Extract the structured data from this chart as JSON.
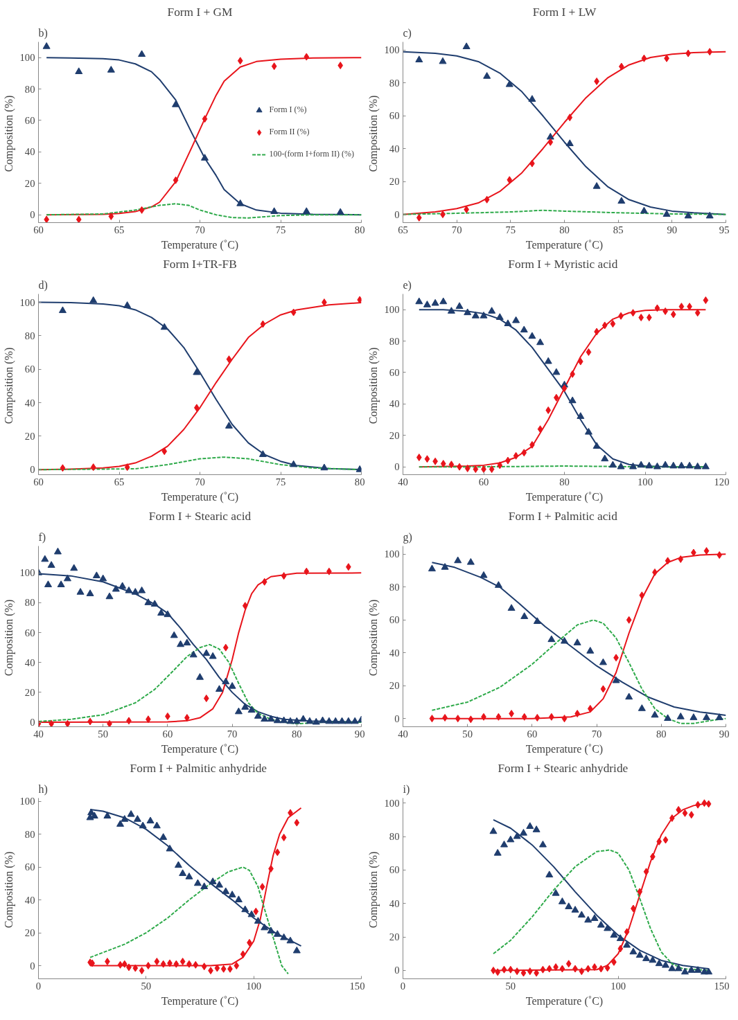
{
  "chart_data": [
    {
      "type": "scatter",
      "title": "Form I + GM",
      "annotations": [
        "b)"
      ],
      "xlabel": "Temperature (˚C)",
      "ylabel": "Composition  (%)",
      "xlim": [
        60,
        80
      ],
      "xticks": [
        60,
        65,
        70,
        75,
        80
      ],
      "ylim": [
        -5,
        110
      ],
      "yticks": [
        0,
        20,
        40,
        60,
        80,
        100
      ],
      "grid": false,
      "legend": "right",
      "series": [
        {
          "name": "Form I (%)",
          "type": "scatter",
          "marker": "triangle",
          "color": "#1f3d6e",
          "x": [
            60.5,
            62.5,
            64.5,
            66.4,
            68.5,
            70.3,
            72.5,
            74.6,
            76.6,
            78.7
          ],
          "values": [
            107,
            91,
            92,
            102,
            70,
            36,
            7,
            2,
            2,
            1.5
          ]
        },
        {
          "name": "Form II (%)",
          "type": "scatter",
          "marker": "diamond",
          "color": "#e8141b",
          "x": [
            60.5,
            62.5,
            64.5,
            66.4,
            68.5,
            70.3,
            72.5,
            74.6,
            76.6,
            78.7
          ],
          "values": [
            -3,
            -3,
            -1,
            3,
            22,
            61,
            98,
            94.5,
            100.5,
            95
          ]
        },
        {
          "type": "line",
          "line_style": "solid",
          "color": "#1f3d6e",
          "x": [
            60.5,
            62,
            64,
            65,
            66,
            67,
            67.5,
            68.5,
            69.5,
            70.3,
            71,
            71.5,
            72.5,
            73.5,
            75,
            77,
            80
          ],
          "values": [
            100,
            99.8,
            99.3,
            98.5,
            96,
            91,
            86,
            73,
            52,
            36,
            25,
            16,
            7,
            3,
            1,
            0.3,
            0
          ]
        },
        {
          "type": "line",
          "line_style": "solid",
          "color": "#e8141b",
          "x": [
            60.5,
            64,
            65,
            66,
            67,
            67.5,
            68.5,
            69.5,
            70.3,
            71,
            71.5,
            72.5,
            73.5,
            75,
            77,
            80
          ],
          "values": [
            0,
            0.3,
            0.8,
            2,
            5,
            8,
            21,
            43,
            61,
            76,
            85,
            94,
            97.5,
            99,
            99.8,
            100
          ]
        },
        {
          "name": "100-(form I+form II) (%)",
          "type": "line",
          "line_style": "dashed",
          "color": "#2eaa4a",
          "x": [
            60.5,
            64,
            66,
            67.5,
            68.5,
            69.3,
            70,
            71,
            72,
            73,
            75,
            77,
            80
          ],
          "values": [
            0,
            0.5,
            3,
            6,
            7,
            6,
            3,
            0,
            -1.8,
            -2,
            -0.5,
            0,
            0
          ]
        }
      ]
    },
    {
      "type": "scatter",
      "title": "Form I + LW",
      "annotations": [
        "c)"
      ],
      "xlabel": "Temperature (˚C)",
      "ylabel": "Composition  (%)",
      "xlim": [
        65,
        95
      ],
      "xticks": [
        65,
        70,
        75,
        80,
        85,
        90,
        95
      ],
      "ylim": [
        -5,
        105
      ],
      "yticks": [
        0,
        20,
        40,
        60,
        80,
        100
      ],
      "grid": false,
      "series": [
        {
          "type": "scatter",
          "marker": "triangle",
          "color": "#1f3d6e",
          "x": [
            66.5,
            68.7,
            70.9,
            72.8,
            74.9,
            77,
            78.7,
            80.5,
            83,
            85.3,
            87.4,
            89.5,
            91.5,
            93.5
          ],
          "values": [
            94,
            93,
            102,
            84,
            79,
            70,
            47,
            43,
            17,
            8,
            2,
            0,
            -1,
            -1
          ]
        },
        {
          "type": "scatter",
          "marker": "diamond",
          "color": "#e8141b",
          "x": [
            66.5,
            68.7,
            70.9,
            72.8,
            74.9,
            77,
            78.7,
            80.5,
            83,
            85.3,
            87.4,
            89.5,
            91.5,
            93.5
          ],
          "values": [
            -2,
            0,
            3,
            9,
            21,
            31,
            44,
            59,
            81,
            90,
            95,
            95,
            98,
            99
          ]
        },
        {
          "type": "line",
          "line_style": "solid",
          "color": "#1f3d6e",
          "x": [
            65,
            68,
            70,
            72,
            74,
            76,
            78,
            80,
            82,
            84,
            86,
            88,
            90,
            92,
            95
          ],
          "values": [
            99,
            98,
            96.5,
            93,
            86,
            75,
            60,
            44,
            29,
            17,
            9,
            4.5,
            2,
            1,
            0
          ]
        },
        {
          "type": "line",
          "line_style": "solid",
          "color": "#e8141b",
          "x": [
            65,
            68,
            70,
            72,
            74,
            76,
            78,
            80,
            82,
            84,
            86,
            88,
            90,
            92,
            95
          ],
          "values": [
            0,
            1.5,
            3.5,
            7,
            14,
            25,
            40,
            56,
            71,
            83,
            91,
            95.5,
            97.5,
            98.5,
            99
          ]
        },
        {
          "type": "line",
          "line_style": "dashed",
          "color": "#2eaa4a",
          "x": [
            65,
            70,
            75,
            78,
            80,
            85,
            90,
            95
          ],
          "values": [
            0,
            0.7,
            1.5,
            2.5,
            2,
            1,
            0.3,
            0
          ]
        }
      ]
    },
    {
      "type": "scatter",
      "title": "Form I+TR-FB",
      "annotations": [
        "d)"
      ],
      "xlabel": "Temperature (˚C)",
      "ylabel": "Composition  (%)",
      "xlim": [
        60,
        80
      ],
      "xticks": [
        60,
        65,
        70,
        75,
        80
      ],
      "ylim": [
        -3,
        105
      ],
      "yticks": [
        0,
        20,
        40,
        60,
        80,
        100
      ],
      "grid": false,
      "series": [
        {
          "type": "scatter",
          "marker": "triangle",
          "color": "#1f3d6e",
          "x": [
            61.5,
            63.4,
            65.5,
            67.8,
            69.8,
            71.8,
            73.9,
            75.8,
            77.7,
            79.9
          ],
          "values": [
            95,
            101,
            98,
            85,
            58,
            26,
            9,
            3,
            1,
            0
          ]
        },
        {
          "type": "scatter",
          "marker": "diamond",
          "color": "#e8141b",
          "x": [
            61.5,
            63.4,
            65.5,
            67.8,
            69.8,
            71.8,
            73.9,
            75.8,
            77.7,
            79.9
          ],
          "values": [
            1,
            1.5,
            1.5,
            11,
            37,
            66,
            87,
            94,
            100,
            101.5
          ]
        },
        {
          "type": "line",
          "line_style": "solid",
          "color": "#1f3d6e",
          "x": [
            60,
            62,
            64,
            65,
            66,
            67,
            68,
            69,
            70,
            71,
            72,
            73,
            74,
            75,
            76,
            78,
            80
          ],
          "values": [
            100,
            99.8,
            99,
            98,
            95.5,
            91,
            84,
            73,
            58,
            42,
            27,
            16,
            9,
            5,
            2.5,
            0.6,
            0.1
          ]
        },
        {
          "type": "line",
          "line_style": "solid",
          "color": "#e8141b",
          "x": [
            60,
            62,
            64,
            65,
            66,
            67,
            68,
            69,
            70,
            71,
            72,
            73,
            74,
            75,
            76,
            78,
            80
          ],
          "values": [
            0,
            0.3,
            1,
            2,
            4,
            8,
            14,
            24,
            37,
            52,
            66,
            79,
            87,
            92.5,
            95.5,
            98.5,
            99.8
          ]
        },
        {
          "type": "line",
          "line_style": "dashed",
          "color": "#2eaa4a",
          "x": [
            60,
            66,
            68,
            70,
            71.5,
            73,
            75,
            77,
            80
          ],
          "values": [
            0,
            0.5,
            3,
            6.5,
            7.5,
            6.5,
            3,
            1,
            0
          ]
        }
      ]
    },
    {
      "type": "scatter",
      "title": "Form I + Myristic  acid",
      "annotations": [
        "e)"
      ],
      "xlabel": "Temperature (˚C)",
      "ylabel": "Composition  (%)",
      "xlim": [
        40,
        120
      ],
      "xticks": [
        40,
        60,
        80,
        100,
        120
      ],
      "ylim": [
        -5,
        110
      ],
      "yticks": [
        0,
        20,
        40,
        60,
        80,
        100
      ],
      "grid": false,
      "series": [
        {
          "type": "scatter",
          "marker": "triangle",
          "color": "#1f3d6e",
          "x": [
            44,
            46,
            48,
            50,
            52,
            54,
            56,
            58,
            60,
            62,
            64,
            66,
            68,
            70,
            72,
            74,
            76,
            78,
            80,
            82,
            84,
            86,
            88,
            90,
            92,
            94,
            97,
            99,
            101,
            103,
            105,
            107,
            109,
            111,
            113,
            115
          ],
          "values": [
            105,
            103,
            104,
            105,
            99,
            102,
            98,
            96,
            96,
            99,
            95,
            91,
            93,
            87,
            83,
            79,
            67,
            60,
            52,
            42,
            32,
            22,
            13,
            5,
            1,
            0,
            0,
            1,
            0.5,
            0,
            1,
            0.5,
            0.5,
            0.5,
            0,
            0
          ]
        },
        {
          "type": "scatter",
          "marker": "diamond",
          "color": "#e8141b",
          "x": [
            44,
            46,
            48,
            50,
            52,
            54,
            56,
            58,
            60,
            62,
            64,
            66,
            68,
            70,
            72,
            74,
            76,
            78,
            80,
            82,
            84,
            86,
            88,
            90,
            92,
            94,
            97,
            99,
            101,
            103,
            105,
            107,
            109,
            111,
            113,
            115
          ],
          "values": [
            6,
            5,
            3.5,
            2,
            1.5,
            0,
            -1,
            -1.5,
            -1.5,
            -1.5,
            1,
            4,
            7,
            9,
            14,
            24,
            36,
            44,
            50,
            59,
            67,
            73,
            86,
            90,
            91,
            96,
            98,
            95,
            95,
            101,
            99,
            97,
            102,
            102,
            98,
            106
          ]
        },
        {
          "type": "line",
          "line_style": "solid",
          "color": "#1f3d6e",
          "x": [
            44,
            50,
            56,
            60,
            64,
            68,
            72,
            76,
            80,
            84,
            88,
            92,
            96,
            100,
            105,
            115
          ],
          "values": [
            100,
            100,
            99,
            97.5,
            94,
            87,
            76,
            62,
            48,
            30,
            14,
            5,
            1.5,
            0.5,
            0.1,
            0
          ]
        },
        {
          "type": "line",
          "line_style": "solid",
          "color": "#e8141b",
          "x": [
            44,
            56,
            60,
            64,
            68,
            72,
            76,
            80,
            84,
            88,
            92,
            96,
            100,
            105,
            115
          ],
          "values": [
            0,
            0.5,
            1,
            2.5,
            6,
            13,
            30,
            50,
            70,
            85,
            94,
            98,
            99.5,
            100,
            100
          ]
        },
        {
          "type": "line",
          "line_style": "dashed",
          "color": "#2eaa4a",
          "x": [
            44,
            60,
            80,
            100,
            115
          ],
          "values": [
            0,
            0,
            0.5,
            0,
            0
          ]
        }
      ]
    },
    {
      "type": "scatter",
      "title": "Form I + Stearic acid",
      "annotations": [
        "f)"
      ],
      "xlabel": "Temperature (˚C)",
      "ylabel": "Composition  (%)",
      "xlim": [
        40,
        90
      ],
      "xticks": [
        40,
        50,
        60,
        70,
        80,
        90
      ],
      "ylim": [
        -3,
        118
      ],
      "yticks": [
        0,
        20,
        40,
        60,
        80,
        100
      ],
      "grid": false,
      "series": [
        {
          "type": "scatter",
          "marker": "triangle",
          "color": "#1f3d6e",
          "x": [
            40,
            41,
            41.5,
            42,
            43,
            43.5,
            44.5,
            45.5,
            46.5,
            48,
            49,
            50,
            51,
            52,
            53,
            54,
            55,
            56,
            57,
            58,
            59,
            60,
            61,
            62,
            63,
            64,
            65,
            66,
            67,
            68,
            69,
            70,
            71,
            72,
            73,
            74,
            75,
            76,
            77,
            78,
            79,
            80,
            81,
            82,
            83,
            84,
            85,
            86,
            87,
            88,
            89,
            90
          ],
          "values": [
            100,
            109,
            92,
            105,
            114,
            92,
            96,
            103,
            87,
            86,
            98,
            96,
            84,
            89,
            91,
            88,
            87,
            88,
            80,
            79,
            73,
            72,
            58,
            52,
            53,
            45,
            30,
            46,
            44,
            22,
            27,
            24,
            7,
            10,
            8,
            4,
            2,
            2,
            1,
            1,
            0.5,
            0.5,
            2,
            0.5,
            0,
            1,
            0.5,
            0.5,
            0.5,
            0.5,
            0.5,
            1.5
          ]
        },
        {
          "type": "scatter",
          "marker": "diamond",
          "color": "#e8141b",
          "x": [
            40,
            42,
            44.5,
            48,
            51,
            54,
            57,
            60,
            63,
            66,
            69,
            72,
            75,
            78,
            81.5,
            85,
            88
          ],
          "values": [
            -1,
            -1,
            -1,
            0.5,
            -1,
            1,
            2,
            4,
            3,
            16,
            50,
            78,
            94,
            98,
            101,
            101,
            104
          ]
        },
        {
          "type": "line",
          "line_style": "solid",
          "color": "#1f3d6e",
          "x": [
            40,
            45,
            50,
            55,
            58,
            60,
            62,
            64,
            66,
            68,
            70,
            72,
            74,
            76,
            78,
            82,
            90
          ],
          "values": [
            99.5,
            98,
            94,
            86,
            79,
            73,
            63,
            52,
            42,
            30,
            20,
            12,
            7,
            4,
            2,
            0.8,
            0.1
          ]
        },
        {
          "type": "line",
          "line_style": "solid",
          "color": "#e8141b",
          "x": [
            40,
            60,
            63,
            65,
            67,
            68.5,
            70,
            71,
            72,
            73,
            74,
            76,
            80,
            90
          ],
          "values": [
            0,
            0.2,
            1,
            3,
            9,
            20,
            42,
            60,
            75,
            86,
            92,
            97.5,
            99.8,
            100
          ]
        },
        {
          "type": "line",
          "line_style": "dashed",
          "color": "#2eaa4a",
          "x": [
            40,
            45,
            50,
            55,
            58,
            61,
            63,
            65,
            66.5,
            68,
            69.5,
            71,
            72.5,
            74,
            76,
            78,
            80,
            82,
            84,
            90
          ],
          "values": [
            0.5,
            2,
            5,
            13,
            22,
            35,
            44,
            50,
            52,
            49,
            40,
            26,
            13,
            6,
            2,
            0,
            -1,
            -0.5,
            0,
            0
          ]
        }
      ]
    },
    {
      "type": "scatter",
      "title": "Form I + Palmitic  acid",
      "annotations": [
        "g)"
      ],
      "xlabel": "Temperature (˚C)",
      "ylabel": "Composition  (%)",
      "xlim": [
        40,
        90
      ],
      "xticks": [
        40,
        50,
        60,
        70,
        80,
        90
      ],
      "ylim": [
        -5,
        105
      ],
      "yticks": [
        0,
        20,
        40,
        60,
        80,
        100
      ],
      "grid": false,
      "series": [
        {
          "type": "scatter",
          "marker": "triangle",
          "color": "#1f3d6e",
          "x": [
            44.5,
            46.5,
            48.5,
            50.5,
            52.5,
            54.8,
            56.8,
            58.8,
            60.8,
            63,
            65,
            67,
            69,
            71,
            73,
            75,
            77,
            79,
            81,
            83,
            85,
            87,
            89
          ],
          "values": [
            91,
            92,
            96,
            95,
            87,
            81,
            67,
            62,
            59,
            48,
            47,
            46,
            41,
            34,
            23,
            13,
            6,
            2,
            0,
            1,
            0.5,
            0.5,
            0.5
          ]
        },
        {
          "type": "scatter",
          "marker": "diamond",
          "color": "#e8141b",
          "x": [
            44.5,
            46.5,
            48.5,
            50.5,
            52.5,
            54.8,
            56.8,
            58.8,
            60.8,
            63,
            65,
            67,
            69,
            71,
            73,
            75,
            77,
            79,
            81,
            83,
            85,
            87,
            89
          ],
          "values": [
            0,
            0.5,
            0,
            -0.5,
            1,
            1,
            3,
            1,
            0.5,
            1,
            0,
            3,
            6,
            18,
            37,
            60,
            75,
            89,
            96,
            97,
            101,
            102,
            99.5
          ]
        },
        {
          "type": "line",
          "line_style": "solid",
          "color": "#1f3d6e",
          "x": [
            44.5,
            48,
            52,
            55,
            58,
            62,
            66,
            70,
            74,
            78,
            82,
            86,
            90
          ],
          "values": [
            95,
            92,
            86,
            80,
            70,
            56,
            44,
            32,
            22,
            13,
            7,
            4,
            2
          ]
        },
        {
          "type": "line",
          "line_style": "solid",
          "color": "#e8141b",
          "x": [
            44.5,
            60,
            66,
            69,
            71,
            73,
            75,
            77,
            79,
            81,
            83,
            86,
            90
          ],
          "values": [
            0,
            0,
            1,
            4,
            12,
            28,
            52,
            73,
            88,
            95,
            98,
            99.5,
            100
          ]
        },
        {
          "type": "line",
          "line_style": "dashed",
          "color": "#2eaa4a",
          "x": [
            44.5,
            50,
            55,
            60,
            64,
            67,
            69.5,
            71,
            73,
            75,
            77,
            79,
            81,
            83,
            85,
            88,
            90
          ],
          "values": [
            5,
            10,
            19,
            33,
            47,
            57,
            60,
            58,
            49,
            34,
            18,
            6,
            0,
            -3,
            -3,
            -1,
            0
          ]
        }
      ]
    },
    {
      "type": "scatter",
      "title": "Form I + Palmitic  anhydride",
      "annotations": [
        "h)"
      ],
      "xlabel": "Temperature (˚C)",
      "ylabel": "Composition  (%)",
      "xlim": [
        0,
        150
      ],
      "xticks": [
        0,
        50,
        100,
        150
      ],
      "ylim": [
        -8,
        102
      ],
      "yticks": [
        0,
        20,
        40,
        60,
        80,
        100
      ],
      "grid": false,
      "series": [
        {
          "type": "scatter",
          "marker": "triangle",
          "color": "#1f3d6e",
          "x": [
            24,
            24.5,
            25,
            26,
            32,
            38,
            40,
            43,
            46,
            48.5,
            52,
            55,
            58,
            61,
            65,
            67,
            70,
            74,
            77,
            81,
            84,
            87,
            90,
            93,
            96,
            99,
            102,
            105,
            108,
            111,
            114,
            117,
            120
          ],
          "values": [
            90,
            93,
            null,
            91,
            91,
            86,
            89,
            92,
            89,
            85,
            88,
            85,
            78,
            71,
            61,
            56,
            54,
            50,
            48,
            51,
            49,
            45,
            43,
            40,
            34,
            31,
            27,
            23,
            21,
            19,
            17,
            15,
            9
          ]
        },
        {
          "type": "scatter",
          "marker": "diamond",
          "color": "#e8141b",
          "x": [
            24,
            25,
            32,
            38,
            40,
            42,
            45,
            48,
            51,
            55,
            58,
            61,
            64,
            67,
            70,
            73,
            77,
            80,
            83,
            86,
            89,
            92,
            95,
            98,
            101,
            104,
            108,
            111,
            114,
            117,
            120
          ],
          "values": [
            2,
            1.5,
            2.5,
            0.5,
            1,
            -1,
            -1.5,
            -3,
            0,
            2.5,
            1,
            1.5,
            1,
            2.5,
            1,
            0.5,
            -0.5,
            -3,
            -1.5,
            -2,
            -2,
            0,
            7,
            14,
            33,
            48,
            59,
            69,
            78,
            93,
            87
          ]
        },
        {
          "type": "line",
          "line_style": "solid",
          "color": "#1f3d6e",
          "x": [
            24,
            30,
            40,
            50,
            60,
            70,
            80,
            90,
            100,
            110,
            122
          ],
          "values": [
            95,
            94,
            90,
            83,
            73,
            61,
            50,
            40,
            29,
            20,
            12
          ]
        },
        {
          "type": "line",
          "line_style": "solid",
          "color": "#e8141b",
          "x": [
            24,
            80,
            90,
            95,
            100,
            103,
            106,
            109,
            112,
            116,
            122
          ],
          "values": [
            0,
            0,
            1,
            5,
            15,
            28,
            48,
            67,
            80,
            90,
            96
          ]
        },
        {
          "type": "line",
          "line_style": "dashed",
          "color": "#2eaa4a",
          "x": [
            24,
            30,
            40,
            50,
            60,
            70,
            80,
            88,
            95,
            98,
            102,
            106,
            110,
            113,
            116
          ],
          "values": [
            5,
            8,
            13,
            20,
            29,
            40,
            50,
            57,
            60,
            58,
            48,
            30,
            13,
            0,
            -5
          ]
        }
      ]
    },
    {
      "type": "scatter",
      "title": "Form I + Stearic  anhydride",
      "annotations": [
        "i)"
      ],
      "xlabel": "Temperature (˚C)",
      "ylabel": "Composition  (%)",
      "xlim": [
        0,
        150
      ],
      "xticks": [
        0,
        50,
        100,
        150
      ],
      "ylim": [
        -5,
        103
      ],
      "yticks": [
        0,
        20,
        40,
        60,
        80,
        100
      ],
      "grid": false,
      "series": [
        {
          "type": "scatter",
          "marker": "triangle",
          "color": "#1f3d6e",
          "x": [
            42,
            44,
            47,
            50,
            53,
            56,
            59,
            62,
            65,
            68,
            71,
            74,
            77,
            80,
            83,
            86,
            89,
            92,
            95,
            98,
            101,
            104,
            107,
            110,
            113,
            116,
            119,
            122,
            125,
            128,
            131,
            134,
            137,
            140,
            142
          ],
          "values": [
            83,
            70,
            75,
            78,
            80,
            82,
            86,
            84,
            75,
            57,
            46,
            41,
            38,
            36,
            33,
            30,
            31,
            27,
            25,
            21,
            19,
            15,
            11,
            9,
            7,
            6,
            4,
            3,
            1,
            1,
            -1,
            0,
            0,
            -1,
            -1
          ]
        },
        {
          "type": "scatter",
          "marker": "diamond",
          "color": "#e8141b",
          "x": [
            42,
            44,
            47,
            50,
            53,
            56,
            59,
            62,
            65,
            68,
            71,
            74,
            77,
            80,
            83,
            86,
            89,
            92,
            95,
            98,
            101,
            104,
            107,
            110,
            113,
            116,
            119,
            122,
            125,
            128,
            131,
            134,
            137,
            140,
            142
          ],
          "values": [
            0,
            -1,
            0.5,
            0.5,
            -0.5,
            -1.5,
            -0.5,
            -1.5,
            0.5,
            1,
            2,
            1,
            4,
            1,
            -0.5,
            1,
            2,
            1,
            1.5,
            5,
            13,
            23,
            37,
            47,
            59,
            68,
            77,
            78,
            91,
            96,
            94,
            93,
            99,
            100,
            99.5
          ]
        },
        {
          "type": "line",
          "line_style": "solid",
          "color": "#1f3d6e",
          "x": [
            42,
            50,
            60,
            70,
            80,
            90,
            100,
            110,
            120,
            130,
            142
          ],
          "values": [
            90,
            85,
            75,
            62,
            47,
            33,
            21,
            12,
            6,
            3,
            1
          ]
        },
        {
          "type": "line",
          "line_style": "solid",
          "color": "#e8141b",
          "x": [
            42,
            90,
            95,
            100,
            105,
            110,
            115,
            120,
            125,
            130,
            135,
            142
          ],
          "values": [
            0,
            0.5,
            3,
            10,
            25,
            45,
            65,
            81,
            91,
            96,
            98.5,
            100
          ]
        },
        {
          "type": "line",
          "line_style": "dashed",
          "color": "#2eaa4a",
          "x": [
            42,
            50,
            60,
            70,
            80,
            90,
            96,
            100,
            105,
            110,
            115,
            120,
            125,
            130,
            142
          ],
          "values": [
            10,
            18,
            32,
            48,
            62,
            71,
            72,
            70,
            60,
            43,
            25,
            11,
            4,
            1,
            0
          ]
        }
      ]
    }
  ]
}
